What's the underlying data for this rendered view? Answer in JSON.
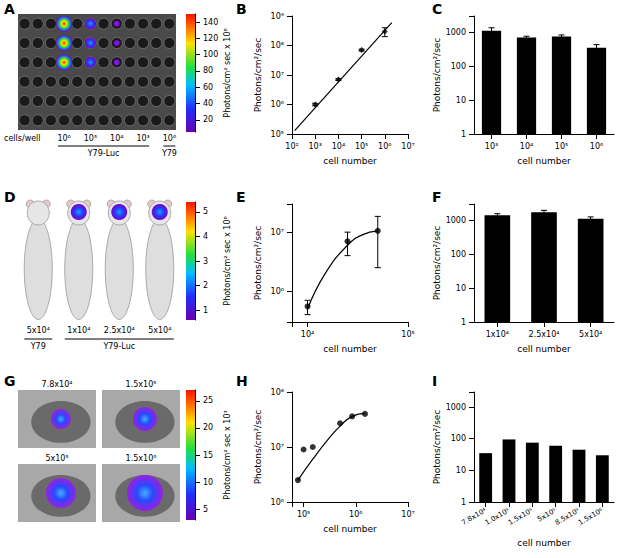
{
  "chart_data": [
    {
      "title": "A",
      "type": "image",
      "colorbar": {
        "label": "Photons/cm² sec x 10⁶",
        "range": [
          5,
          150
        ],
        "ticks": [
          20,
          40,
          60,
          80,
          100,
          120,
          140
        ]
      },
      "row_label": "cells/well",
      "labels": [
        "10⁶",
        "10⁵",
        "10⁴",
        "10³",
        "10⁶"
      ],
      "groups": [
        "Y79-Luc",
        "Y79"
      ]
    },
    {
      "title": "B",
      "type": "scatter",
      "log": true,
      "xlim": [
        100,
        10000000
      ],
      "ylim": [
        100000,
        1000000000
      ],
      "xticks": [
        {
          "value": 100,
          "label": "10²"
        },
        {
          "value": 1000,
          "label": "10³"
        },
        {
          "value": 10000,
          "label": "10⁴"
        },
        {
          "value": 100000,
          "label": "10⁵"
        },
        {
          "value": 1000000,
          "label": "10⁶"
        },
        {
          "value": 10000000,
          "label": "10⁷"
        }
      ],
      "yticks": [
        {
          "value": 100000,
          "label": "10⁵"
        },
        {
          "value": 1000000,
          "label": "10⁶"
        },
        {
          "value": 10000000,
          "label": "10⁷"
        },
        {
          "value": 100000000,
          "label": "10⁸"
        },
        {
          "value": 1000000000,
          "label": "10⁹"
        }
      ],
      "xlabel": "cell number",
      "ylabel": "Photons/cm²/sec",
      "series": [
        {
          "type": "scatter",
          "marker": "diamond",
          "color": "#000000",
          "x": [
            1000,
            10000,
            100000,
            1000000
          ],
          "values": [
            1000000,
            7000000,
            70000000,
            300000000
          ],
          "errors": [
            100000,
            500000,
            5000000,
            100000000
          ]
        },
        {
          "type": "line",
          "line_style": "solid",
          "color": "#000000",
          "x": [
            130,
            2000000
          ],
          "values": [
            130000,
            600000000
          ]
        }
      ]
    },
    {
      "title": "C",
      "type": "bar",
      "log": "y",
      "categories": [
        "10³",
        "10⁴",
        "10⁵",
        "10⁶"
      ],
      "values": [
        1100,
        700,
        750,
        350
      ],
      "errors": [
        250,
        60,
        80,
        80
      ],
      "color": "#000000",
      "ylim": [
        1,
        3000
      ],
      "yticks": [
        1,
        10,
        100,
        1000
      ],
      "xlabel": "cell number",
      "ylabel": "Photons/cm²/sec"
    },
    {
      "title": "D",
      "type": "image",
      "colorbar": {
        "label": "Photons/cm² sec x 10⁶",
        "range": [
          0.6,
          5.4
        ],
        "ticks": [
          1,
          2,
          3,
          4,
          5
        ]
      },
      "labels": [
        "5x10⁴",
        "1x10⁴",
        "2.5x10⁴",
        "5x10⁴"
      ],
      "groups": [
        "Y79",
        "Y79-Luc"
      ]
    },
    {
      "title": "E",
      "type": "scatter",
      "log": true,
      "xlim": [
        7000,
        100000
      ],
      "ylim": [
        300000,
        30000000
      ],
      "xticks": [
        {
          "value": 10000,
          "label": "10⁴"
        },
        {
          "value": 100000,
          "label": "10⁵"
        }
      ],
      "yticks": [
        {
          "value": 1000000,
          "label": "10⁶"
        },
        {
          "value": 10000000,
          "label": "10⁷"
        }
      ],
      "xlabel": "cell number",
      "ylabel": "Photons/cm²/sec",
      "series": [
        {
          "type": "scatter",
          "marker": "circle",
          "color": "#000000",
          "x": [
            10000,
            25000,
            50000
          ],
          "values": [
            550000,
            7000000,
            10500000
          ],
          "errors": [
            150000,
            3000000,
            8000000
          ]
        },
        {
          "type": "line",
          "line_style": "solid",
          "color": "#000000",
          "x": [
            10000,
            15000,
            25000,
            35000,
            50000
          ],
          "values": [
            500000,
            2000000,
            6000000,
            9000000,
            10500000
          ]
        }
      ]
    },
    {
      "title": "F",
      "type": "bar",
      "log": "y",
      "categories": [
        "1x10⁴",
        "2.5x10⁴",
        "5x10⁴"
      ],
      "values": [
        1400,
        1700,
        1100
      ],
      "errors": [
        150,
        250,
        150
      ],
      "color": "#000000",
      "ylim": [
        1,
        3000
      ],
      "yticks": [
        1,
        10,
        100,
        1000
      ],
      "xlabel": "cell number",
      "ylabel": "Photons/cm²/sec"
    },
    {
      "title": "G",
      "type": "image",
      "colorbar": {
        "label": "Photons/cm² sec x 10³",
        "range": [
          3,
          27
        ],
        "ticks": [
          5,
          10,
          15,
          20,
          25
        ]
      },
      "labels": [
        "7.8x10⁴",
        "1.5x10⁵",
        "5x10⁵",
        "1.5x10⁶"
      ]
    },
    {
      "title": "H",
      "type": "scatter",
      "log": true,
      "xlim": [
        60000,
        10000000
      ],
      "ylim": [
        1000000,
        100000000
      ],
      "xticks": [
        {
          "value": 100000,
          "label": "10⁵"
        },
        {
          "value": 1000000,
          "label": "10⁶"
        },
        {
          "value": 10000000,
          "label": "10⁷"
        }
      ],
      "yticks": [
        {
          "value": 1000000,
          "label": "10⁶"
        },
        {
          "value": 10000000,
          "label": "10⁷"
        },
        {
          "value": 100000000,
          "label": "10⁸"
        }
      ],
      "xlabel": "cell number",
      "ylabel": "Photons/cm²/sec",
      "series": [
        {
          "type": "scatter",
          "marker": "circle",
          "color": "#000000",
          "x": [
            78000,
            100000,
            150000,
            500000,
            850000,
            1500000
          ],
          "values": [
            2500000,
            9000000,
            10000000,
            27000000,
            36000000,
            40000000
          ]
        },
        {
          "type": "line",
          "line_style": "solid",
          "color": "#000000",
          "x": [
            78000,
            150000,
            300000,
            500000,
            850000,
            1500000
          ],
          "values": [
            2500000,
            6000000,
            14000000,
            24000000,
            36000000,
            41000000
          ]
        }
      ]
    },
    {
      "title": "I",
      "type": "bar",
      "log": "y",
      "categories": [
        "7.8x10⁴",
        "1.0x10⁵",
        "1.5x10⁵",
        "5x10⁵",
        "8.5x10⁵",
        "1.5x10⁶"
      ],
      "values": [
        35,
        95,
        75,
        60,
        45,
        30
      ],
      "color": "#000000",
      "ylim": [
        1,
        3000
      ],
      "yticks": [
        1,
        10,
        100,
        1000
      ],
      "xlabel": "cell number",
      "ylabel": "Photons/cm²/sec"
    }
  ]
}
